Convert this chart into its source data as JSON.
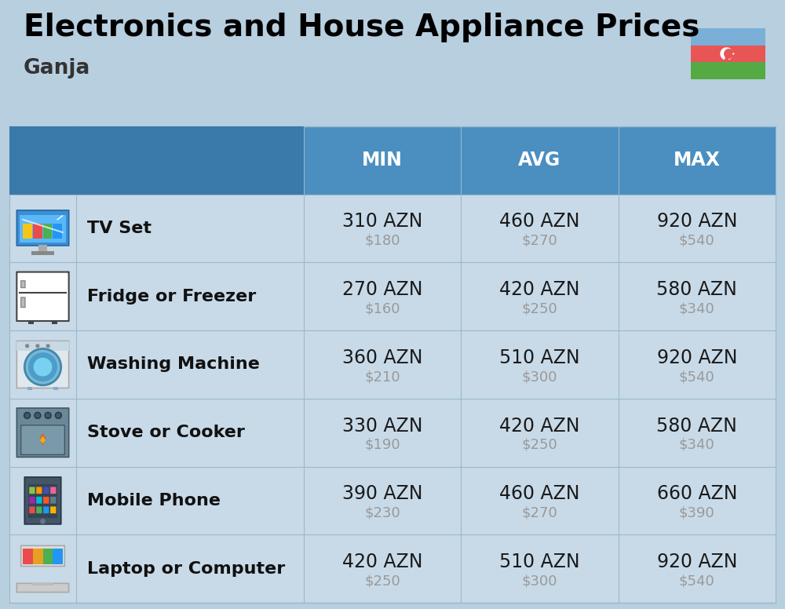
{
  "title": "Electronics and House Appliance Prices",
  "subtitle": "Ganja",
  "background_color": "#b8cfe0",
  "header_color": "#4a8fc0",
  "header_left_color": "#3a7aaa",
  "header_text_color": "#ffffff",
  "row_bg_color": "#c8dae8",
  "separator_color": "#9ab8cc",
  "col_headers": [
    "MIN",
    "AVG",
    "MAX"
  ],
  "rows": [
    {
      "name": "TV Set",
      "min_azn": "310 AZN",
      "min_usd": "$180",
      "avg_azn": "460 AZN",
      "avg_usd": "$270",
      "max_azn": "920 AZN",
      "max_usd": "$540"
    },
    {
      "name": "Fridge or Freezer",
      "min_azn": "270 AZN",
      "min_usd": "$160",
      "avg_azn": "420 AZN",
      "avg_usd": "$250",
      "max_azn": "580 AZN",
      "max_usd": "$340"
    },
    {
      "name": "Washing Machine",
      "min_azn": "360 AZN",
      "min_usd": "$210",
      "avg_azn": "510 AZN",
      "avg_usd": "$300",
      "max_azn": "920 AZN",
      "max_usd": "$540"
    },
    {
      "name": "Stove or Cooker",
      "min_azn": "330 AZN",
      "min_usd": "$190",
      "avg_azn": "420 AZN",
      "avg_usd": "$250",
      "max_azn": "580 AZN",
      "max_usd": "$340"
    },
    {
      "name": "Mobile Phone",
      "min_azn": "390 AZN",
      "min_usd": "$230",
      "avg_azn": "460 AZN",
      "avg_usd": "$270",
      "max_azn": "660 AZN",
      "max_usd": "$390"
    },
    {
      "name": "Laptop or Computer",
      "min_azn": "420 AZN",
      "min_usd": "$250",
      "avg_azn": "510 AZN",
      "avg_usd": "$300",
      "max_azn": "920 AZN",
      "max_usd": "$540"
    }
  ],
  "title_fontsize": 28,
  "subtitle_fontsize": 19,
  "header_fontsize": 17,
  "item_name_fontsize": 16,
  "value_azn_fontsize": 17,
  "value_usd_fontsize": 13,
  "usd_color": "#999999",
  "item_name_color": "#111111",
  "value_azn_color": "#1a1a1a",
  "flag_blue": "#7ab0d8",
  "flag_red": "#e85555",
  "flag_green": "#55aa44"
}
